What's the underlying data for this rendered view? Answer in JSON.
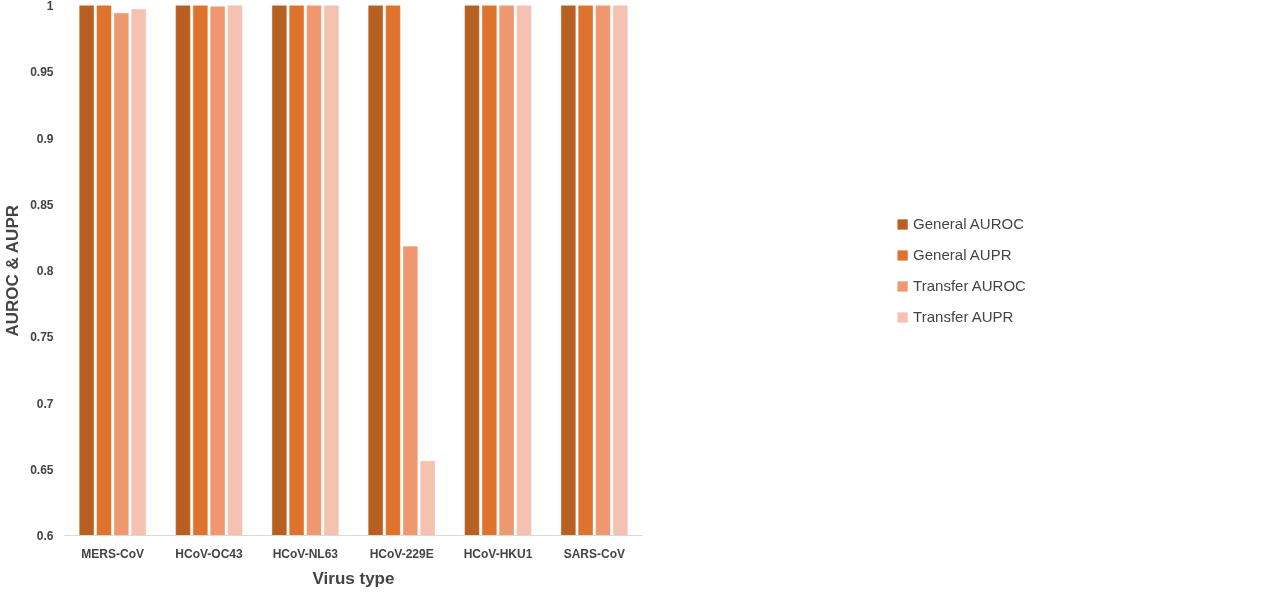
{
  "chart_data": {
    "type": "bar",
    "xlabel": "Virus type",
    "ylabel": "AUROC & AUPR",
    "categories": [
      "MERS-CoV",
      "HCoV-OC43",
      "HCoV-NL63",
      "HCoV-229E",
      "HCoV-HKU1",
      "SARS-CoV"
    ],
    "series": [
      {
        "name": "General AUROC",
        "color": "#b85f22",
        "values": [
          1,
          1,
          1,
          1,
          1,
          1
        ]
      },
      {
        "name": "General AUPR",
        "color": "#de732d",
        "values": [
          1,
          1,
          1,
          1,
          1,
          1
        ]
      },
      {
        "name": "Transfer AUROC",
        "color": "#ef9870",
        "values": [
          0.994,
          0.999,
          1,
          0.818,
          1,
          1
        ]
      },
      {
        "name": "Transfer AUPR",
        "color": "#f5c1b0",
        "values": [
          0.997,
          1,
          1,
          0.656,
          1,
          1
        ]
      }
    ],
    "ylim": [
      0.6,
      1
    ],
    "yticks": [
      {
        "value": 0.6,
        "label": "0.6"
      },
      0.65,
      {
        "value": 0.7,
        "label": "0.7"
      },
      0.75,
      {
        "value": 0.8,
        "label": "0.8"
      },
      0.85,
      {
        "value": 0.9,
        "label": "0.9"
      },
      0.95,
      {
        "value": 1,
        "label": "1"
      }
    ],
    "legend": "right"
  }
}
